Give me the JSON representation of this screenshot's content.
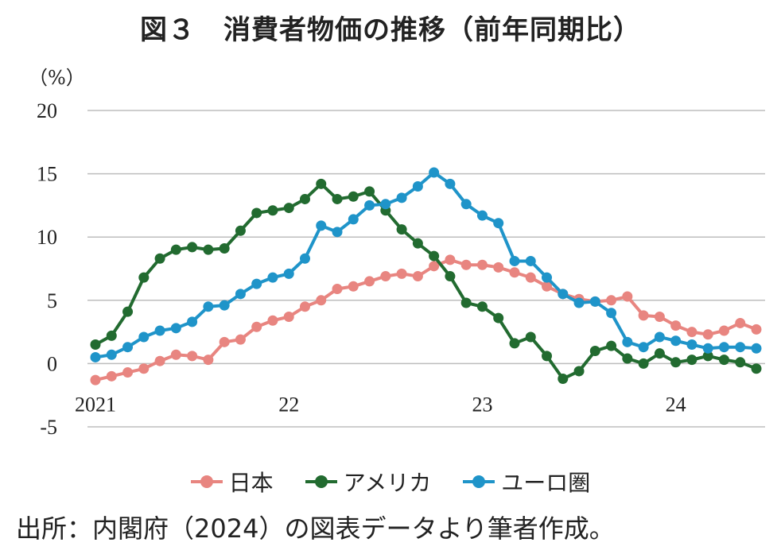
{
  "title": "図３　消費者物価の推移（前年同期比）",
  "unit": "（%）",
  "source": "出所：内閣府（2024）の図表データより筆者作成。",
  "chart_data": {
    "type": "line",
    "y_ticks": [
      "20",
      "15",
      "10",
      "5",
      "0",
      "-5"
    ],
    "ylim": [
      -5,
      20
    ],
    "x_ticks": [
      {
        "label": "2021",
        "index": 0
      },
      {
        "label": "22",
        "index": 12
      },
      {
        "label": "23",
        "index": 24
      },
      {
        "label": "24",
        "index": 36
      }
    ],
    "grid": true,
    "legend_position": "bottom",
    "series": [
      {
        "name": "日本",
        "color": "#e88580",
        "values": [
          -1.3,
          -1.0,
          -0.7,
          -0.4,
          0.2,
          0.7,
          0.6,
          0.3,
          1.7,
          1.9,
          2.9,
          3.4,
          3.7,
          4.5,
          5.0,
          5.9,
          6.1,
          6.5,
          6.9,
          7.1,
          6.9,
          7.7,
          8.2,
          7.8,
          7.8,
          7.6,
          7.2,
          6.8,
          6.1,
          5.5,
          5.1,
          4.9,
          5.0,
          5.3,
          3.8,
          3.7,
          3.0,
          2.5,
          2.3,
          2.6,
          3.2,
          2.7
        ]
      },
      {
        "name": "アメリカ",
        "color": "#226b30",
        "values": [
          1.5,
          2.2,
          4.1,
          6.8,
          8.3,
          9.0,
          9.2,
          9.0,
          9.1,
          10.5,
          11.9,
          12.1,
          12.3,
          13.0,
          14.2,
          13.0,
          13.2,
          13.6,
          12.1,
          10.6,
          9.5,
          8.5,
          6.9,
          4.8,
          4.5,
          3.6,
          1.6,
          2.1,
          0.6,
          -1.2,
          -0.6,
          1.0,
          1.4,
          0.4,
          0.0,
          0.8,
          0.1,
          0.3,
          0.6,
          0.3,
          0.1,
          -0.4
        ]
      },
      {
        "name": "ユーロ圏",
        "color": "#1f94c9",
        "values": [
          0.5,
          0.7,
          1.3,
          2.1,
          2.6,
          2.8,
          3.3,
          4.5,
          4.6,
          5.5,
          6.3,
          6.8,
          7.1,
          8.3,
          10.9,
          10.4,
          11.4,
          12.5,
          12.6,
          13.1,
          14.0,
          15.1,
          14.2,
          12.6,
          11.7,
          11.1,
          8.1,
          8.1,
          6.8,
          5.5,
          4.8,
          4.9,
          4.0,
          1.7,
          1.3,
          2.1,
          1.8,
          1.5,
          1.2,
          1.3,
          1.3,
          1.2
        ]
      }
    ]
  }
}
